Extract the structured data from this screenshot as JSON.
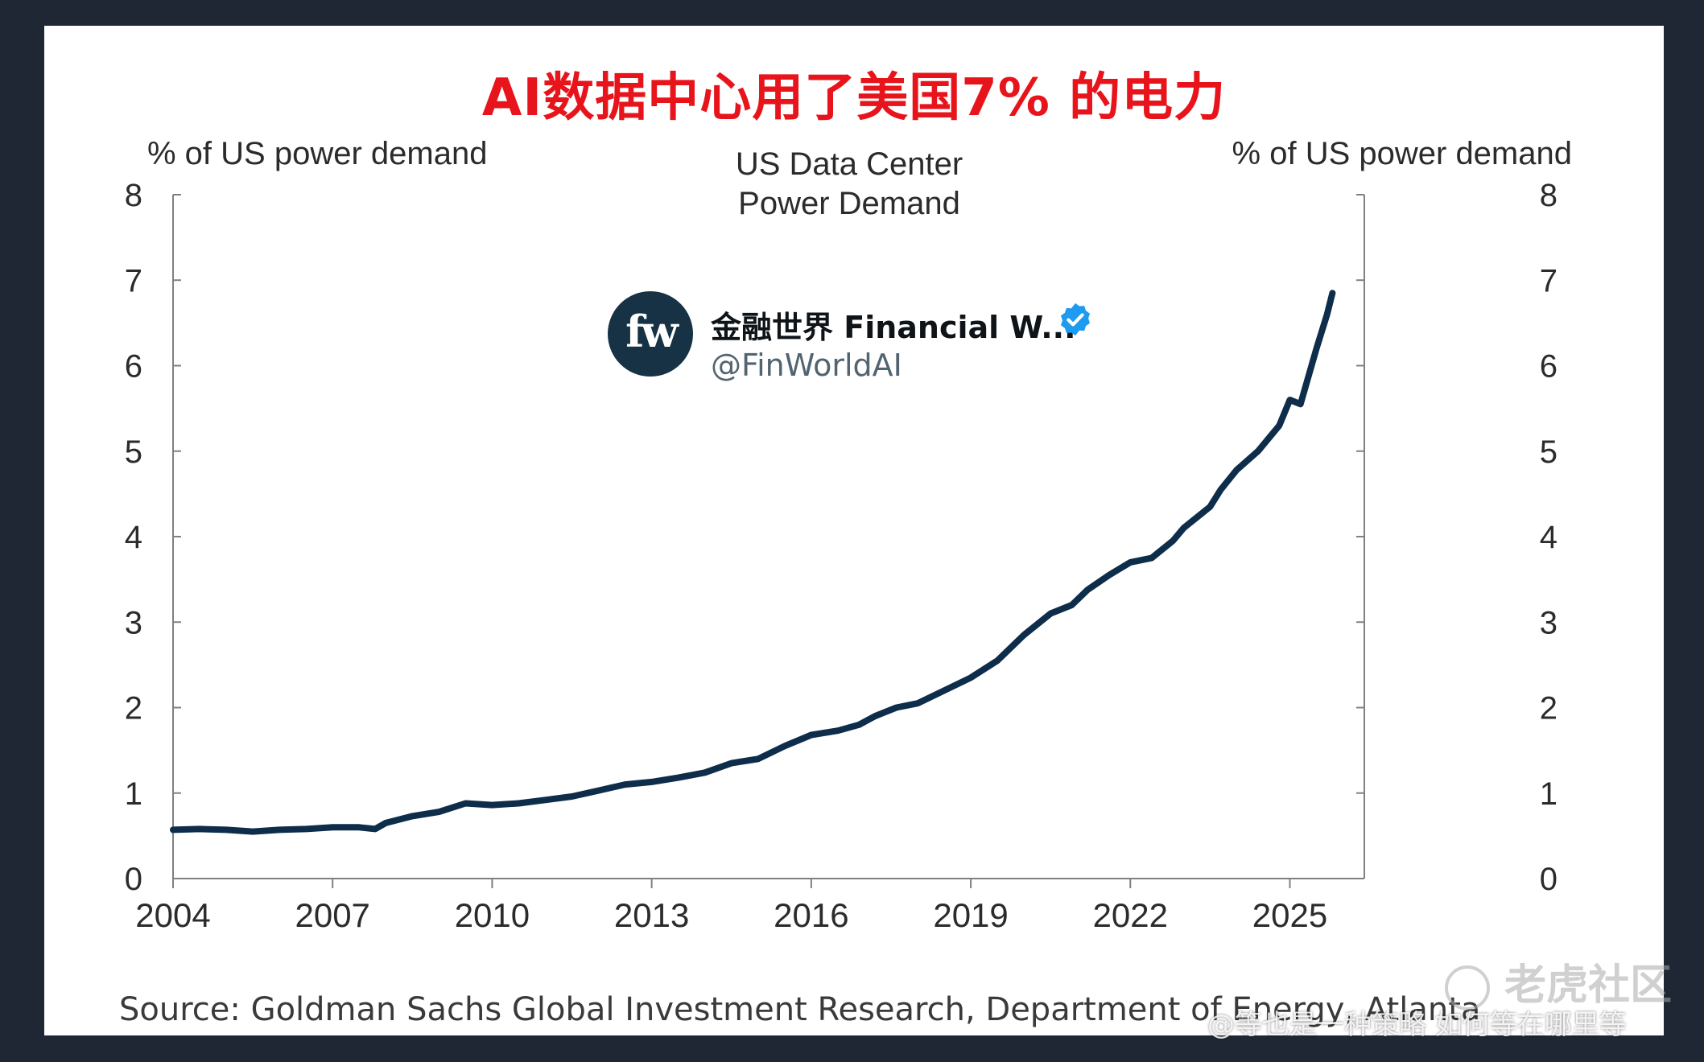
{
  "headline": "AI数据中心用了美国7% 的电力",
  "profile": {
    "avatar_text": "fw",
    "name": "金融世界 Financial W...",
    "handle": "@FinWorldAI",
    "verified_icon": "verified-badge-icon",
    "verified_color": "#1d9bf0"
  },
  "source": "Source: Goldman Sachs Global Investment Research, Department of Energy, Atlanta",
  "watermark": {
    "logo_text": "老虎社区",
    "user_text": "@等也是一种策略 如何等在哪里等"
  },
  "chart_data": {
    "type": "line",
    "title": "US Data Center\nPower Demand",
    "title_lines": [
      "US Data Center",
      "Power Demand"
    ],
    "ylabel_left": "% of US power demand",
    "ylabel_right": "% of US power demand",
    "xlim": [
      2004,
      2026.4
    ],
    "ylim": [
      0,
      8
    ],
    "x_ticks": [
      "2004",
      "2007",
      "2010",
      "2013",
      "2016",
      "2019",
      "2022",
      "2025"
    ],
    "y_ticks": [
      "0",
      "1",
      "2",
      "3",
      "4",
      "5",
      "6",
      "7",
      "8"
    ],
    "grid": false,
    "line_color": "#0e2d4a",
    "series": [
      {
        "x": [
          2004.0,
          2004.5,
          2005.0,
          2005.5,
          2006.0,
          2006.5,
          2007.0,
          2007.5,
          2007.8,
          2008.0,
          2008.5,
          2009.0,
          2009.5,
          2010.0,
          2010.5,
          2011.0,
          2011.5,
          2012.0,
          2012.5,
          2013.0,
          2013.5,
          2014.0,
          2014.5,
          2015.0,
          2015.5,
          2016.0,
          2016.5,
          2016.9,
          2017.2,
          2017.6,
          2018.0,
          2018.5,
          2019.0,
          2019.5,
          2020.0,
          2020.5,
          2020.9,
          2021.2,
          2021.6,
          2022.0,
          2022.4,
          2022.8,
          2023.0,
          2023.2,
          2023.5,
          2023.7,
          2024.0,
          2024.4,
          2024.8,
          2025.0,
          2025.2,
          2025.5,
          2025.7,
          2025.8
        ],
        "values": [
          0.57,
          0.58,
          0.57,
          0.55,
          0.57,
          0.58,
          0.6,
          0.6,
          0.58,
          0.65,
          0.73,
          0.78,
          0.88,
          0.86,
          0.88,
          0.92,
          0.96,
          1.03,
          1.1,
          1.13,
          1.18,
          1.24,
          1.35,
          1.4,
          1.55,
          1.68,
          1.73,
          1.8,
          1.9,
          2.0,
          2.05,
          2.2,
          2.35,
          2.55,
          2.85,
          3.1,
          3.2,
          3.38,
          3.55,
          3.7,
          3.75,
          3.95,
          4.1,
          4.2,
          4.35,
          4.55,
          4.78,
          5.0,
          5.3,
          5.6,
          5.55,
          6.2,
          6.6,
          6.85
        ]
      }
    ]
  }
}
